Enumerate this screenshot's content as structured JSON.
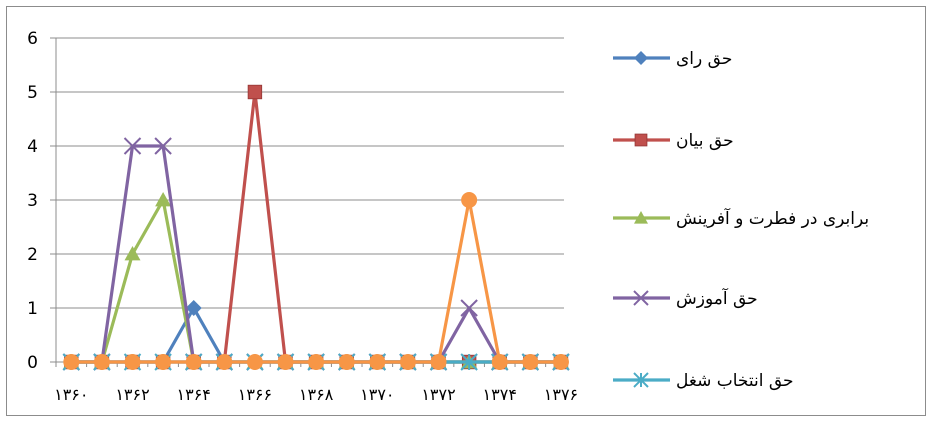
{
  "chart_data": {
    "type": "line",
    "title": "",
    "xlabel": "",
    "ylabel": "",
    "ylim": [
      0,
      6
    ],
    "yticks": [
      "0",
      "1",
      "2",
      "3",
      "4",
      "5",
      "6"
    ],
    "x": [
      "۱۳۶۰",
      "۱۳۶۱",
      "۱۳۶۲",
      "۱۳۶۳",
      "۱۳۶۴",
      "۱۳۶۵",
      "۱۳۶۶",
      "۱۳۶۷",
      "۱۳۶۸",
      "۱۳۶۹",
      "۱۳۷۰",
      "۱۳۷۱",
      "۱۳۷۲",
      "۱۳۷۳",
      "۱۳۷۴",
      "۱۳۷۵",
      "۱۳۷۶"
    ],
    "xtick_labels": [
      "۱۳۶۰",
      "۱۳۶۲",
      "۱۳۶۴",
      "۱۳۶۶",
      "۱۳۶۸",
      "۱۳۷۰",
      "۱۳۷۲",
      "۱۳۷۴",
      "۱۳۷۶"
    ],
    "grid": true,
    "legend_position": "right",
    "series": [
      {
        "name": "حق رای",
        "color": "#4f81bd",
        "marker": "diamond",
        "values": [
          0,
          0,
          0,
          0,
          1,
          0,
          0,
          0,
          0,
          0,
          0,
          0,
          0,
          0,
          0,
          0,
          0
        ]
      },
      {
        "name": "حق بیان",
        "color": "#c0504d",
        "marker": "square",
        "values": [
          0,
          0,
          0,
          0,
          0,
          0,
          5,
          0,
          0,
          0,
          0,
          0,
          0,
          0,
          0,
          0,
          0
        ]
      },
      {
        "name": "برابری در فطرت و آفرینش",
        "color": "#9bbb59",
        "marker": "triangle",
        "values": [
          0,
          0,
          2,
          3,
          0,
          0,
          0,
          0,
          0,
          0,
          0,
          0,
          0,
          0,
          0,
          0,
          0
        ]
      },
      {
        "name": "حق آموزش",
        "color": "#8064a2",
        "marker": "x",
        "values": [
          0,
          0,
          4,
          4,
          0,
          0,
          0,
          0,
          0,
          0,
          0,
          0,
          0,
          1,
          0,
          0,
          0
        ]
      },
      {
        "name": "حق انتخاب شغل",
        "color": "#4bacc6",
        "marker": "star",
        "values": [
          0,
          0,
          0,
          0,
          0,
          0,
          0,
          0,
          0,
          0,
          0,
          0,
          0,
          0,
          0,
          0,
          0
        ]
      },
      {
        "name": "",
        "color": "#f79646",
        "marker": "circle",
        "values": [
          0,
          0,
          0,
          0,
          0,
          0,
          0,
          0,
          0,
          0,
          0,
          0,
          0,
          3,
          0,
          0,
          0
        ]
      }
    ]
  }
}
